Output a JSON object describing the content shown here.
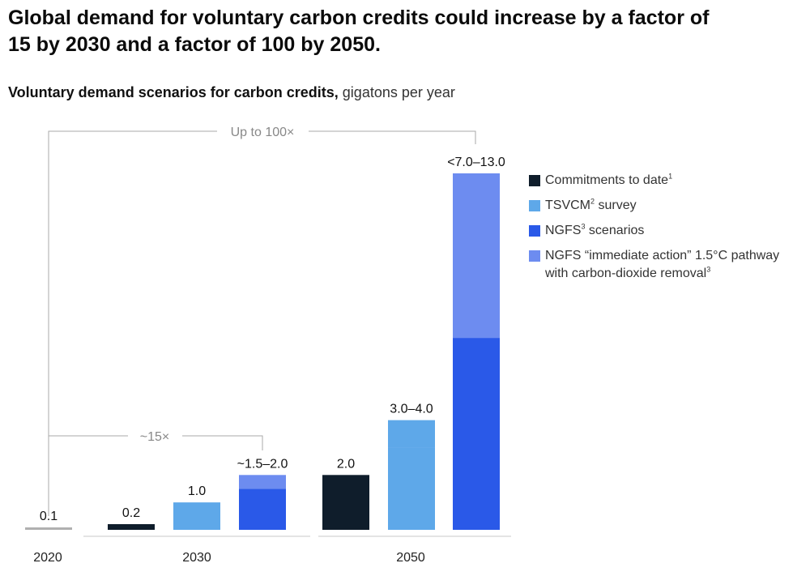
{
  "header": {
    "title": "Global demand for voluntary carbon credits could increase by a factor of 15 by 2030 and a factor of 100 by 2050.",
    "subtitle_bold": "Voluntary demand scenarios for carbon credits,",
    "subtitle_unit": "gigatons per year"
  },
  "colors": {
    "commitments": "#0f1d2b",
    "tsvcm": "#5ea8e9",
    "ngfs": "#2a59e8",
    "ngfs_immediate": "#6d8cf0",
    "baseline_2020": "#b0b0b0",
    "annotation": "#aaaaaa"
  },
  "legend": [
    {
      "key": "commitments",
      "label": "Commitments to date",
      "sup": "1"
    },
    {
      "key": "tsvcm",
      "label": "TSVCM",
      "sup": "2",
      "suffix": " survey"
    },
    {
      "key": "ngfs",
      "label": "NGFS",
      "sup": "3",
      "suffix": " scenarios"
    },
    {
      "key": "ngfs_immediate",
      "label": "NGFS “immediate action” 1.5°C pathway",
      "label2": "with carbon-dioxide removal",
      "sup2": "3"
    }
  ],
  "annotations": {
    "multiplier_2050": "Up to 100×",
    "multiplier_2030": "~15×"
  },
  "chart_data": {
    "type": "bar",
    "title": "Voluntary demand scenarios for carbon credits",
    "ylabel": "gigatons per year",
    "xlabel": "",
    "ylim": [
      0,
      13.0
    ],
    "groups": [
      {
        "label": "2020",
        "bars": [
          {
            "series": "2020",
            "segments": [
              {
                "key": "baseline_2020",
                "from": 0,
                "to": 0.1
              }
            ],
            "label": "0.1"
          }
        ]
      },
      {
        "label": "2030",
        "bars": [
          {
            "series": "Commitments to date",
            "segments": [
              {
                "key": "commitments",
                "from": 0,
                "to": 0.2
              }
            ],
            "label": "0.2"
          },
          {
            "series": "TSVCM survey",
            "segments": [
              {
                "key": "tsvcm",
                "from": 0,
                "to": 1.0
              }
            ],
            "label": "1.0"
          },
          {
            "series": "NGFS scenarios",
            "segments": [
              {
                "key": "ngfs",
                "from": 0,
                "to": 1.5
              },
              {
                "key": "ngfs_immediate",
                "from": 1.5,
                "to": 2.0
              }
            ],
            "label": "~1.5–2.0"
          }
        ]
      },
      {
        "label": "2050",
        "bars": [
          {
            "series": "Commitments to date",
            "segments": [
              {
                "key": "commitments",
                "from": 0,
                "to": 2.0
              }
            ],
            "label": "2.0"
          },
          {
            "series": "TSVCM survey",
            "segments": [
              {
                "key": "tsvcm",
                "from": 0,
                "to": 3.0
              },
              {
                "key": "tsvcm",
                "from": 3.0,
                "to": 4.0
              }
            ],
            "label": "3.0–4.0"
          },
          {
            "series": "NGFS scenarios",
            "segments": [
              {
                "key": "ngfs",
                "from": 0,
                "to": 7.0
              },
              {
                "key": "ngfs_immediate",
                "from": 7.0,
                "to": 13.0
              }
            ],
            "label": "<7.0–13.0"
          }
        ]
      }
    ]
  }
}
